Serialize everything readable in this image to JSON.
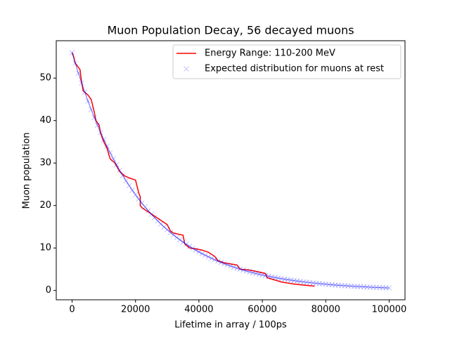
{
  "chart_data": {
    "type": "line",
    "title": "Muon Population Decay, 56 decayed muons",
    "x_label": "Lifetime in array / 100ps",
    "y_label": "Muon population",
    "xlim": [
      -5000,
      105000
    ],
    "ylim": [
      -2.2,
      58.8
    ],
    "xticks": [
      0,
      20000,
      40000,
      60000,
      80000,
      100000
    ],
    "yticks": [
      0,
      10,
      20,
      30,
      40,
      50
    ],
    "legend": "upper right",
    "series": [
      {
        "name": "Energy Range: 110-200 MeV",
        "color": "#ff0000",
        "style": "line",
        "x": [
          0,
          500,
          1000,
          1500,
          2500,
          3000,
          3500,
          5000,
          6000,
          7000,
          7500,
          8500,
          9000,
          10000,
          11000,
          12000,
          13500,
          15000,
          16500,
          18000,
          20000,
          21000,
          21500,
          21500,
          22000,
          23000,
          25000,
          27000,
          29000,
          30000,
          31000,
          32000,
          35000,
          35500,
          37000,
          39000,
          41000,
          43000,
          45000,
          46000,
          48000,
          52000,
          53000,
          56000,
          58000,
          61000,
          61500,
          66000,
          70000,
          76500
        ],
        "values": [
          56,
          55,
          53.5,
          53,
          52,
          49,
          47,
          46,
          45,
          42,
          40,
          39,
          37,
          35,
          33.5,
          31,
          30,
          28,
          27,
          26.5,
          26,
          23,
          22,
          20,
          19.5,
          19,
          18,
          17,
          16,
          15.5,
          14,
          13.5,
          13,
          11,
          10,
          9.8,
          9.5,
          9,
          8,
          7,
          6.5,
          6,
          5,
          4.8,
          4.5,
          4,
          3,
          2,
          1.5,
          1
        ]
      },
      {
        "name": "Expected distribution for muons at rest",
        "color": "#0000ff",
        "style": "marker",
        "x": [
          0,
          1000,
          2000,
          3000,
          4000,
          5000,
          6000,
          7000,
          8000,
          9000,
          10000,
          11000,
          12000,
          13000,
          14000,
          15000,
          16000,
          17000,
          18000,
          19000,
          20000,
          21000,
          22000,
          23000,
          24000,
          25000,
          26000,
          27000,
          28000,
          29000,
          30000,
          31000,
          32000,
          33000,
          34000,
          35000,
          36000,
          37000,
          38000,
          39000,
          40000,
          41000,
          42000,
          43000,
          44000,
          45000,
          46000,
          47000,
          48000,
          49000,
          50000,
          51000,
          52000,
          53000,
          54000,
          55000,
          56000,
          57000,
          58000,
          59000,
          60000,
          61000,
          62000,
          63000,
          64000,
          65000,
          66000,
          67000,
          68000,
          69000,
          70000,
          71000,
          72000,
          73000,
          74000,
          75000,
          76000,
          77000,
          78000,
          79000,
          80000,
          81000,
          82000,
          83000,
          84000,
          85000,
          86000,
          87000,
          88000,
          89000,
          90000,
          91000,
          92000,
          93000,
          94000,
          95000,
          96000,
          97000,
          98000,
          99000,
          100000
        ],
        "values": [
          56,
          53.51,
          51.13,
          48.85,
          46.68,
          44.6,
          42.62,
          40.72,
          38.91,
          37.18,
          35.52,
          33.94,
          32.43,
          30.99,
          29.61,
          28.29,
          27.03,
          25.83,
          24.68,
          23.58,
          22.53,
          21.53,
          20.57,
          19.66,
          18.78,
          17.95,
          17.15,
          16.38,
          15.66,
          14.96,
          14.29,
          13.66,
          13.05,
          12.47,
          11.92,
          11.39,
          10.88,
          10.39,
          9.93,
          9.49,
          9.07,
          8.66,
          8.28,
          7.91,
          7.56,
          7.22,
          6.9,
          6.59,
          6.3,
          6.02,
          5.75,
          5.5,
          5.25,
          5.02,
          4.8,
          4.58,
          4.38,
          4.18,
          4,
          3.82,
          3.65,
          3.49,
          3.33,
          3.18,
          3.04,
          2.91,
          2.78,
          2.65,
          2.54,
          2.42,
          2.32,
          2.21,
          2.11,
          2.02,
          1.93,
          1.84,
          1.76,
          1.68,
          1.61,
          1.54,
          1.47,
          1.4,
          1.34,
          1.28,
          1.22,
          1.17,
          1.12,
          1.07,
          1.02,
          0.97,
          0.93,
          0.89,
          0.85,
          0.81,
          0.78,
          0.74,
          0.71,
          0.68,
          0.65,
          0.62,
          0.59
        ]
      }
    ]
  }
}
